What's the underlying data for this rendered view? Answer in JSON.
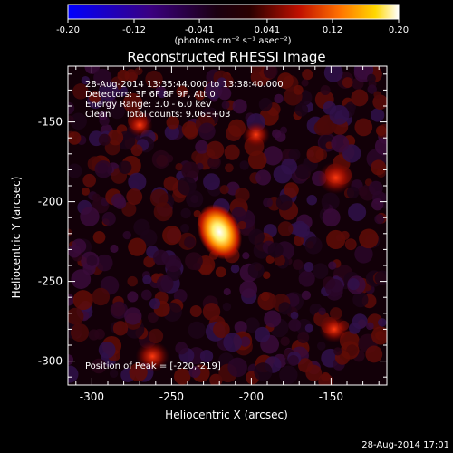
{
  "chart_data": {
    "type": "heatmap",
    "title": "Reconstructed RHESSI Image",
    "colorbar": {
      "ticks": [
        "-0.20",
        "-0.12",
        "-0.041",
        "0.041",
        "0.12",
        "0.20"
      ],
      "tick_values": [
        -0.2,
        -0.12,
        -0.041,
        0.041,
        0.12,
        0.2
      ],
      "range": [
        -0.2,
        0.2
      ],
      "unit_label": "(photons cm⁻² s⁻¹ asec⁻²)"
    },
    "xlabel": "Heliocentric X (arcsec)",
    "ylabel": "Heliocentric Y (arcsec)",
    "xlim": [
      -315,
      -115
    ],
    "ylim": [
      -315,
      -115
    ],
    "x_ticks": [
      "-300",
      "-250",
      "-200",
      "-150"
    ],
    "x_tick_values": [
      -300,
      -250,
      -200,
      -150
    ],
    "y_ticks": [
      "-150",
      "-200",
      "-250",
      "-300"
    ],
    "y_tick_values": [
      -150,
      -200,
      -250,
      -300
    ],
    "annotations": [
      "28-Aug-2014 13:35:44.000 to 13:38:40.000",
      "Detectors: 3F 6F 8F 9F, Att 0",
      "Energy Range: 3.0 - 6.0 keV",
      "Clean     Total counts: 9.06E+03"
    ],
    "peak_label": "Position of Peak = [-220,-219]",
    "peak_position": [
      -220,
      -219
    ],
    "sources": [
      {
        "x": -220,
        "y": -219,
        "value": 0.2
      },
      {
        "x": -147,
        "y": -185,
        "value": 0.09
      },
      {
        "x": -262,
        "y": -297,
        "value": 0.08
      },
      {
        "x": -148,
        "y": -280,
        "value": 0.06
      },
      {
        "x": -197,
        "y": -158,
        "value": 0.05
      },
      {
        "x": -270,
        "y": -152,
        "value": 0.04
      }
    ]
  },
  "footer_timestamp": "28-Aug-2014 17:01"
}
